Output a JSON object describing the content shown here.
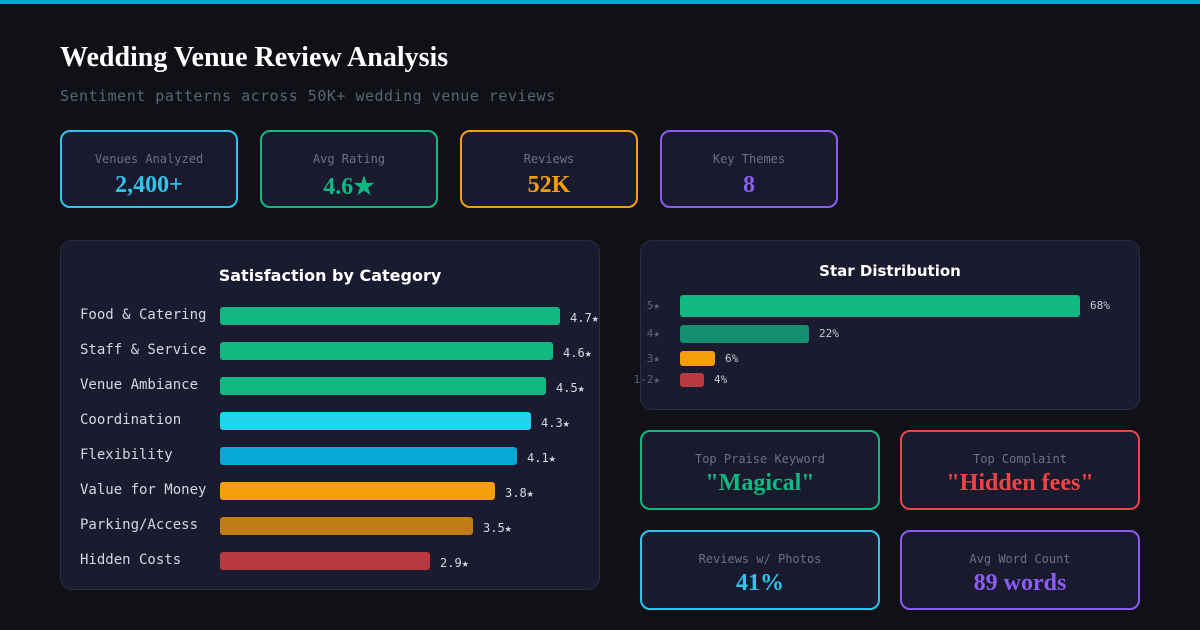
{
  "header": {
    "title": "Wedding Venue Review Analysis",
    "subtitle": "Sentiment patterns across 50K+ wedding venue reviews"
  },
  "kpis": [
    {
      "label": "Venues Analyzed",
      "value": "2,400+",
      "color": "#2ec4f0"
    },
    {
      "label": "Avg Rating",
      "value": "4.6★",
      "color": "#10b981"
    },
    {
      "label": "Reviews",
      "value": "52K",
      "color": "#f59e0b"
    },
    {
      "label": "Key Themes",
      "value": "8",
      "color": "#8b5cf6"
    }
  ],
  "chart_data": [
    {
      "type": "bar",
      "orientation": "horizontal",
      "title": "Satisfaction by Category",
      "categories": [
        "Food & Catering",
        "Staff & Service",
        "Venue Ambiance",
        "Coordination",
        "Flexibility",
        "Value for Money",
        "Parking/Access",
        "Hidden Costs"
      ],
      "values": [
        4.7,
        4.6,
        4.5,
        4.3,
        4.1,
        3.8,
        3.5,
        2.9
      ],
      "value_labels": [
        "4.7★",
        "4.6★",
        "4.5★",
        "4.3★",
        "4.1★",
        "3.8★",
        "3.5★",
        "2.9★"
      ],
      "colors": [
        "#10b981",
        "#10b981",
        "#10b981",
        "#22d3ee",
        "#06a8d6",
        "#f59e0b",
        "#c27c14",
        "#b73a3f"
      ],
      "xlim": [
        0,
        4.7
      ]
    },
    {
      "type": "bar",
      "orientation": "horizontal",
      "title": "Star Distribution",
      "categories": [
        "5★",
        "4★",
        "3★",
        "1-2★"
      ],
      "values": [
        68,
        22,
        6,
        4
      ],
      "value_labels": [
        "68%",
        "22%",
        "6%",
        "4%"
      ],
      "colors": [
        "#10b981",
        "#14906e",
        "#f59e0b",
        "#b73a3f"
      ],
      "xlim": [
        0,
        68
      ]
    }
  ],
  "stats": [
    {
      "label": "Top Praise Keyword",
      "value": "\"Magical\"",
      "color": "#10b981"
    },
    {
      "label": "Top Complaint",
      "value": "\"Hidden fees\"",
      "color": "#ef4444"
    },
    {
      "label": "Reviews w/ Photos",
      "value": "41%",
      "color": "#2ec4f0"
    },
    {
      "label": "Avg Word Count",
      "value": "89 words",
      "color": "#8b5cf6"
    }
  ]
}
